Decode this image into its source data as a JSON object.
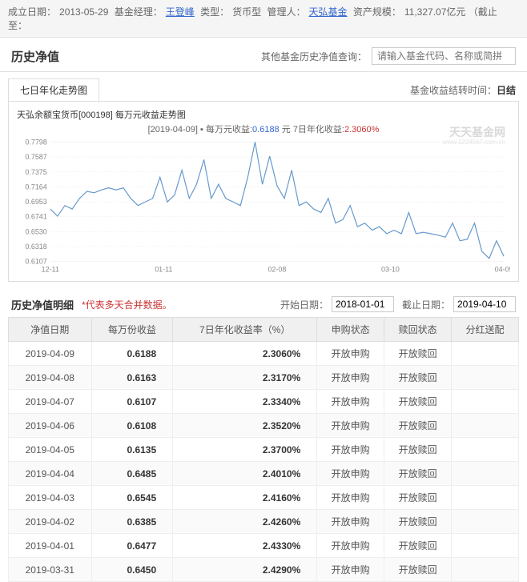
{
  "info": {
    "label_date": "成立日期：",
    "date": "2013-05-29",
    "label_manager": "基金经理：",
    "manager": "王登峰",
    "label_type": "类型：",
    "type": "货币型",
    "label_admin": "管理人：",
    "admin": "天弘基金",
    "label_scale": "资产规模：",
    "scale": "11,327.07亿元 （截止至："
  },
  "header": {
    "title": "历史净值",
    "search_label": "其他基金历史净值查询：",
    "search_placeholder": "请输入基金代码、名称或简拼"
  },
  "chart": {
    "tab": "七日年化走势图",
    "settle_label": "基金收益结转时间：",
    "settle_value": "日结",
    "title": "天弘余额宝货币[000198] 每万元收益走势图",
    "legend_date": "[2019-04-09]",
    "legend_l1": "每万元收益:",
    "legend_v1": "0.6188",
    "legend_unit": "元",
    "legend_l2": "7日年化收益:",
    "legend_v2": "2.3060%",
    "watermark": "天天基金网",
    "watermark_sub": "www.1234567.com.cn",
    "y_ticks": [
      "0.7798",
      "0.7587",
      "0.7375",
      "0.7164",
      "0.6953",
      "0.6741",
      "0.6530",
      "0.6318",
      "0.6107"
    ],
    "x_ticks": [
      "12-11",
      "01-11",
      "02-08",
      "03-10",
      "04-09"
    ],
    "line_color": "#6699cc",
    "grid_color": "#e8e8e8",
    "points": [
      [
        0,
        0.685
      ],
      [
        5,
        0.675
      ],
      [
        10,
        0.69
      ],
      [
        15,
        0.685
      ],
      [
        20,
        0.7
      ],
      [
        25,
        0.71
      ],
      [
        30,
        0.708
      ],
      [
        35,
        0.712
      ],
      [
        40,
        0.715
      ],
      [
        45,
        0.712
      ],
      [
        50,
        0.715
      ],
      [
        55,
        0.7
      ],
      [
        60,
        0.69
      ],
      [
        65,
        0.695
      ],
      [
        70,
        0.7
      ],
      [
        75,
        0.73
      ],
      [
        80,
        0.695
      ],
      [
        85,
        0.705
      ],
      [
        90,
        0.74
      ],
      [
        95,
        0.7
      ],
      [
        100,
        0.72
      ],
      [
        105,
        0.755
      ],
      [
        110,
        0.7
      ],
      [
        115,
        0.72
      ],
      [
        120,
        0.7
      ],
      [
        125,
        0.695
      ],
      [
        130,
        0.69
      ],
      [
        135,
        0.73
      ],
      [
        140,
        0.78
      ],
      [
        145,
        0.72
      ],
      [
        150,
        0.76
      ],
      [
        155,
        0.718
      ],
      [
        160,
        0.7
      ],
      [
        165,
        0.74
      ],
      [
        170,
        0.69
      ],
      [
        175,
        0.695
      ],
      [
        180,
        0.685
      ],
      [
        185,
        0.68
      ],
      [
        190,
        0.7
      ],
      [
        195,
        0.665
      ],
      [
        200,
        0.67
      ],
      [
        205,
        0.69
      ],
      [
        210,
        0.66
      ],
      [
        215,
        0.665
      ],
      [
        220,
        0.655
      ],
      [
        225,
        0.66
      ],
      [
        230,
        0.65
      ],
      [
        235,
        0.655
      ],
      [
        240,
        0.65
      ],
      [
        245,
        0.68
      ],
      [
        250,
        0.65
      ],
      [
        255,
        0.652
      ],
      [
        260,
        0.65
      ],
      [
        265,
        0.648
      ],
      [
        270,
        0.645
      ],
      [
        275,
        0.665
      ],
      [
        280,
        0.64
      ],
      [
        285,
        0.642
      ],
      [
        290,
        0.665
      ],
      [
        295,
        0.625
      ],
      [
        300,
        0.615
      ],
      [
        305,
        0.64
      ],
      [
        310,
        0.618
      ]
    ],
    "xmax": 310,
    "ymin": 0.6107,
    "ymax": 0.7798
  },
  "detail": {
    "title": "历史净值明细",
    "note": "*代表多天合并数据。",
    "start_label": "开始日期：",
    "start_value": "2018-01-01",
    "end_label": "截止日期：",
    "end_value": "2019-04-10"
  },
  "table": {
    "columns": [
      "净值日期",
      "每万份收益",
      "7日年化收益率（%）",
      "申购状态",
      "赎回状态",
      "分红送配"
    ],
    "rows": [
      [
        "2019-04-09",
        "0.6188",
        "2.3060%",
        "开放申购",
        "开放赎回",
        ""
      ],
      [
        "2019-04-08",
        "0.6163",
        "2.3170%",
        "开放申购",
        "开放赎回",
        ""
      ],
      [
        "2019-04-07",
        "0.6107",
        "2.3340%",
        "开放申购",
        "开放赎回",
        ""
      ],
      [
        "2019-04-06",
        "0.6108",
        "2.3520%",
        "开放申购",
        "开放赎回",
        ""
      ],
      [
        "2019-04-05",
        "0.6135",
        "2.3700%",
        "开放申购",
        "开放赎回",
        ""
      ],
      [
        "2019-04-04",
        "0.6485",
        "2.4010%",
        "开放申购",
        "开放赎回",
        ""
      ],
      [
        "2019-04-03",
        "0.6545",
        "2.4160%",
        "开放申购",
        "开放赎回",
        ""
      ],
      [
        "2019-04-02",
        "0.6385",
        "2.4260%",
        "开放申购",
        "开放赎回",
        ""
      ],
      [
        "2019-04-01",
        "0.6477",
        "2.4330%",
        "开放申购",
        "开放赎回",
        ""
      ],
      [
        "2019-03-31",
        "0.6450",
        "2.4290%",
        "开放申购",
        "开放赎回",
        ""
      ]
    ]
  }
}
